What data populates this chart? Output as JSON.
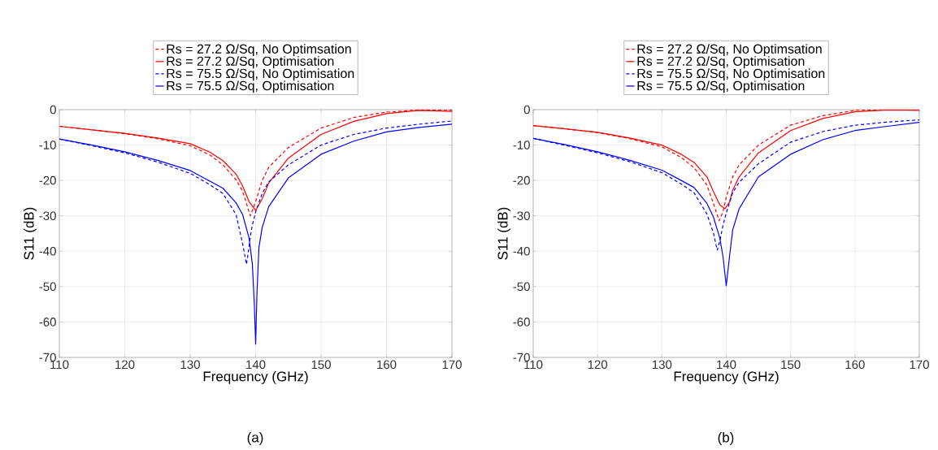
{
  "chart_data": [
    {
      "type": "line",
      "xlabel": "Frequency (GHz)",
      "ylabel": "S11 (dB)",
      "xlim": [
        110,
        170
      ],
      "ylim": [
        -70,
        0
      ],
      "xticks": [
        110,
        120,
        130,
        140,
        150,
        160,
        170
      ],
      "yticks": [
        -70,
        -60,
        -50,
        -40,
        -30,
        -20,
        -10,
        0
      ],
      "grid": true,
      "legend": "top",
      "annotations": [
        "(a)"
      ],
      "series": [
        {
          "name": "Rs = 27.2 Ω/Sq, No Optimsation",
          "color": "#ff0000",
          "line_style": "dashed",
          "x": [
            110,
            115,
            120,
            125,
            130,
            133,
            135,
            137,
            138,
            139,
            139.2,
            140,
            141,
            142,
            145,
            150,
            155,
            160,
            165,
            170
          ],
          "values": [
            -4.7,
            -5.7,
            -6.8,
            -8.2,
            -10.2,
            -12.8,
            -15.6,
            -19.8,
            -23,
            -28.9,
            -30,
            -26,
            -20,
            -16.3,
            -10.7,
            -5.2,
            -2.2,
            -0.7,
            -0.1,
            -0.2
          ]
        },
        {
          "name": "Rs = 27.2 Ω/Sq, Optimisation",
          "color": "#ff0000",
          "line_style": "solid",
          "x": [
            110,
            115,
            120,
            125,
            130,
            133,
            135,
            137,
            138,
            139,
            140,
            141,
            142,
            145,
            150,
            155,
            160,
            165,
            170
          ],
          "values": [
            -4.7,
            -5.7,
            -6.7,
            -8,
            -9.6,
            -12,
            -14.4,
            -18.2,
            -21.5,
            -26,
            -28.5,
            -25.2,
            -20.7,
            -13.7,
            -7,
            -3.3,
            -1.1,
            -0.2,
            -0.5
          ]
        },
        {
          "name": "Rs = 75.5 Ω/Sq, No Optimisation",
          "color": "#0000ff",
          "line_style": "dashed",
          "x": [
            110,
            115,
            120,
            125,
            130,
            133,
            135,
            137,
            138,
            138.6,
            138.9,
            139.2,
            139.5,
            140,
            141,
            142,
            145,
            150,
            155,
            160,
            165,
            170
          ],
          "values": [
            -8.3,
            -10.2,
            -12.2,
            -14.8,
            -18,
            -21.2,
            -23.7,
            -29.6,
            -37.8,
            -43.7,
            -40,
            -35.6,
            -32.6,
            -28.9,
            -23.7,
            -20.4,
            -15.6,
            -10,
            -7,
            -5.2,
            -4.1,
            -3.2
          ]
        },
        {
          "name": "Rs = 75.5 Ω/Sq, Optimisation",
          "color": "#0000ff",
          "line_style": "solid",
          "x": [
            110,
            115,
            120,
            125,
            130,
            133,
            135,
            137,
            138,
            139,
            139.5,
            139.8,
            140,
            140.2,
            140.5,
            141,
            142,
            145,
            150,
            155,
            160,
            165,
            170
          ],
          "values": [
            -8.3,
            -10,
            -11.9,
            -14.3,
            -17.2,
            -20.2,
            -22.2,
            -26.3,
            -29.6,
            -36.3,
            -43.7,
            -55,
            -66.3,
            -52,
            -39,
            -33.3,
            -27.4,
            -19.3,
            -12.6,
            -8.9,
            -6.3,
            -5,
            -4.1
          ]
        }
      ]
    },
    {
      "type": "line",
      "xlabel": "Frequency (GHz)",
      "ylabel": "S11 (dB)",
      "xlim": [
        110,
        170
      ],
      "ylim": [
        -70,
        0
      ],
      "xticks": [
        110,
        120,
        130,
        140,
        150,
        160,
        170
      ],
      "yticks": [
        -70,
        -60,
        -50,
        -40,
        -30,
        -20,
        -10,
        0
      ],
      "grid": true,
      "legend": "top",
      "annotations": [
        "(b)"
      ],
      "series": [
        {
          "name": "Rs = 27.2 Ω/Sq, No Optimsation",
          "color": "#ff0000",
          "line_style": "dashed",
          "x": [
            110,
            115,
            120,
            125,
            130,
            133,
            135,
            137,
            138,
            138.9,
            139.5,
            140,
            141,
            142,
            145,
            150,
            155,
            160,
            165,
            170
          ],
          "values": [
            -4.5,
            -5.4,
            -6.5,
            -8.2,
            -10.5,
            -13.5,
            -16.4,
            -21.3,
            -26.5,
            -31.4,
            -28.8,
            -24.7,
            -19,
            -15.6,
            -10,
            -4.4,
            -1.7,
            -0.2,
            0,
            -0.1
          ]
        },
        {
          "name": "Rs = 27.2 Ω/Sq, Optimisation",
          "color": "#ff0000",
          "line_style": "solid",
          "x": [
            110,
            115,
            120,
            125,
            130,
            133,
            135,
            137,
            138,
            139,
            139.8,
            140.5,
            141,
            142,
            145,
            150,
            155,
            160,
            165,
            170
          ],
          "values": [
            -4.5,
            -5.4,
            -6.4,
            -8,
            -10,
            -12.6,
            -14.9,
            -19,
            -23.1,
            -26.9,
            -28,
            -26.1,
            -22.8,
            -19,
            -12.2,
            -5.9,
            -2.5,
            -0.6,
            -0.1,
            -0.2
          ]
        },
        {
          "name": "Rs = 75.5 Ω/Sq, No Optimisation",
          "color": "#0000ff",
          "line_style": "dashed",
          "x": [
            110,
            115,
            120,
            125,
            130,
            133,
            135,
            137,
            138,
            138.6,
            139,
            139.5,
            140,
            141,
            142,
            145,
            150,
            155,
            160,
            165,
            170
          ],
          "values": [
            -8.1,
            -10.1,
            -12.2,
            -14.7,
            -17.8,
            -21,
            -23.5,
            -29.5,
            -34.8,
            -39.7,
            -37.1,
            -32.6,
            -29.2,
            -23.5,
            -20.5,
            -15.3,
            -9.2,
            -6.2,
            -4.4,
            -3.5,
            -2.9
          ]
        },
        {
          "name": "Rs = 75.5 Ω/Sq, Optimisation",
          "color": "#0000ff",
          "line_style": "solid",
          "x": [
            110,
            115,
            120,
            125,
            130,
            133,
            135,
            137,
            138,
            139,
            139.5,
            140,
            140.5,
            141,
            142,
            145,
            150,
            155,
            160,
            165,
            170
          ],
          "values": [
            -8.1,
            -9.9,
            -11.9,
            -14.3,
            -17.1,
            -20,
            -22,
            -26.5,
            -30.3,
            -36.3,
            -41.6,
            -49.8,
            -41.6,
            -34,
            -28,
            -19,
            -12.6,
            -8.5,
            -5.9,
            -4.7,
            -3.6
          ]
        }
      ]
    }
  ]
}
